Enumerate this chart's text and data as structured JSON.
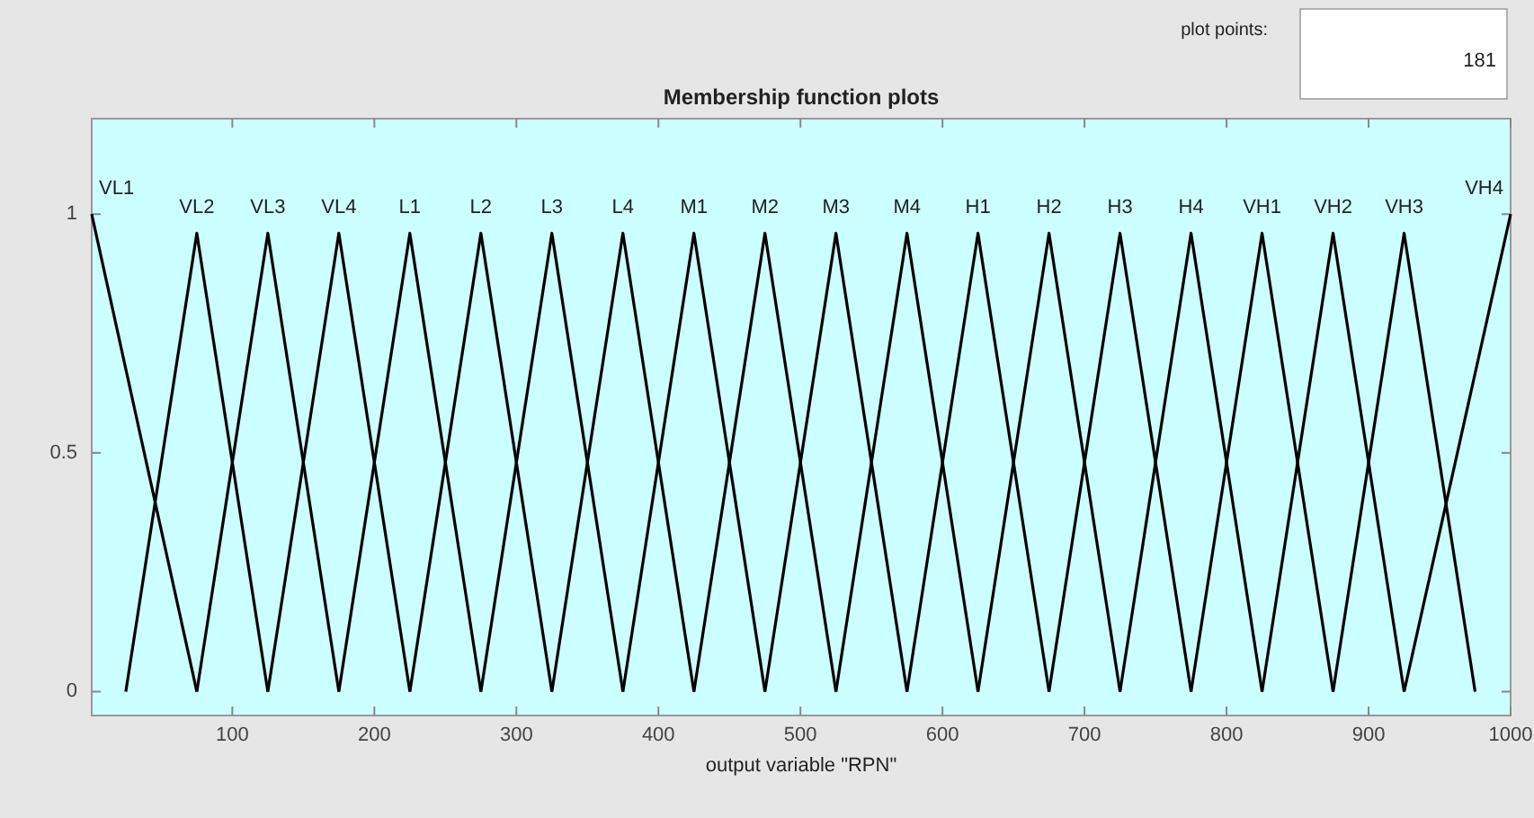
{
  "chart_data": {
    "type": "line",
    "title": "Membership function plots",
    "xlabel": "output variable \"RPN\"",
    "xlim": [
      1,
      1000
    ],
    "ylim": [
      -0.05,
      1.2
    ],
    "xticks": [
      100,
      200,
      300,
      400,
      500,
      600,
      700,
      800,
      900,
      1000
    ],
    "yticks": [
      0,
      0.5,
      1
    ],
    "grid": false,
    "legend": false,
    "marker": "none",
    "line_style": "solid",
    "annotations": [
      "plot points:",
      "181"
    ],
    "series": [
      {
        "name": "VL1",
        "color": "#000000",
        "x": [
          1,
          75
        ],
        "values": [
          1,
          0
        ]
      },
      {
        "name": "VL2",
        "color": "#000000",
        "x": [
          25,
          75,
          125
        ],
        "values": [
          0,
          0.96,
          0
        ]
      },
      {
        "name": "VL3",
        "color": "#000000",
        "x": [
          75,
          125,
          175
        ],
        "values": [
          0,
          0.96,
          0
        ]
      },
      {
        "name": "VL4",
        "color": "#000000",
        "x": [
          125,
          175,
          225
        ],
        "values": [
          0,
          0.96,
          0
        ]
      },
      {
        "name": "L1",
        "color": "#000000",
        "x": [
          175,
          225,
          275
        ],
        "values": [
          0,
          0.96,
          0
        ]
      },
      {
        "name": "L2",
        "color": "#000000",
        "x": [
          225,
          275,
          325
        ],
        "values": [
          0,
          0.96,
          0
        ]
      },
      {
        "name": "L3",
        "color": "#000000",
        "x": [
          275,
          325,
          375
        ],
        "values": [
          0,
          0.96,
          0
        ]
      },
      {
        "name": "L4",
        "color": "#000000",
        "x": [
          325,
          375,
          425
        ],
        "values": [
          0,
          0.96,
          0
        ]
      },
      {
        "name": "M1",
        "color": "#000000",
        "x": [
          375,
          425,
          475
        ],
        "values": [
          0,
          0.96,
          0
        ]
      },
      {
        "name": "M2",
        "color": "#000000",
        "x": [
          425,
          475,
          525
        ],
        "values": [
          0,
          0.96,
          0
        ]
      },
      {
        "name": "M3",
        "color": "#000000",
        "x": [
          475,
          525,
          575
        ],
        "values": [
          0,
          0.96,
          0
        ]
      },
      {
        "name": "M4",
        "color": "#000000",
        "x": [
          525,
          575,
          625
        ],
        "values": [
          0,
          0.96,
          0
        ]
      },
      {
        "name": "H1",
        "color": "#000000",
        "x": [
          575,
          625,
          675
        ],
        "values": [
          0,
          0.96,
          0
        ]
      },
      {
        "name": "H2",
        "color": "#000000",
        "x": [
          625,
          675,
          725
        ],
        "values": [
          0,
          0.96,
          0
        ]
      },
      {
        "name": "H3",
        "color": "#000000",
        "x": [
          675,
          725,
          775
        ],
        "values": [
          0,
          0.96,
          0
        ]
      },
      {
        "name": "H4",
        "color": "#000000",
        "x": [
          725,
          775,
          825
        ],
        "values": [
          0,
          0.96,
          0
        ]
      },
      {
        "name": "VH1",
        "color": "#000000",
        "x": [
          775,
          825,
          875
        ],
        "values": [
          0,
          0.96,
          0
        ]
      },
      {
        "name": "VH2",
        "color": "#000000",
        "x": [
          825,
          875,
          925
        ],
        "values": [
          0,
          0.96,
          0
        ]
      },
      {
        "name": "VH3",
        "color": "#000000",
        "x": [
          875,
          925,
          975
        ],
        "values": [
          0,
          0.96,
          0
        ]
      },
      {
        "name": "VH4",
        "color": "#000000",
        "x": [
          925,
          1000
        ],
        "values": [
          0,
          1
        ]
      }
    ]
  }
}
